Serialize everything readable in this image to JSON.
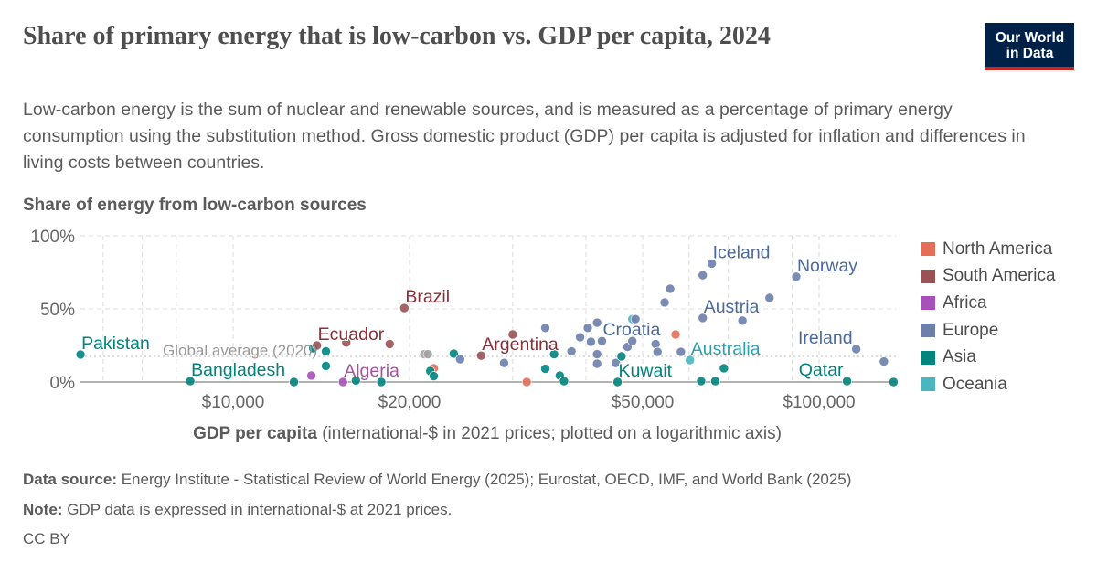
{
  "title": "Share of primary energy that is low-carbon vs. GDP per capita, 2024",
  "subtitle": "Low-carbon energy is the sum of nuclear and renewable sources, and is measured as a percentage of primary energy consumption using the substitution method. Gross domestic product (GDP) per capita is adjusted for inflation and differences in living costs between countries.",
  "logo": {
    "line1": "Our World",
    "line2": "in Data",
    "bg": "#002147",
    "accent": "#ce261e"
  },
  "footer": {
    "source_label": "Data source:",
    "source": "Energy Institute - Statistical Review of World Energy (2025); Eurostat, OECD, IMF, and World Bank (2025)",
    "note_label": "Note:",
    "note": "GDP data is expressed in international-$ at 2021 prices.",
    "license": "CC BY"
  },
  "chart_data": {
    "type": "scatter",
    "ylabel": "Share of energy from low-carbon sources",
    "xlabel_bold": "GDP per capita",
    "xlabel_rest": "(international-$ in 2021 prices; plotted on a logarithmic axis)",
    "x_scale": "log",
    "xlim": [
      5500,
      140000
    ],
    "ylim": [
      0,
      100
    ],
    "x_ticks": [
      {
        "v": 10000,
        "label": "$10,000"
      },
      {
        "v": 20000,
        "label": "$20,000"
      },
      {
        "v": 50000,
        "label": "$50,000"
      },
      {
        "v": 100000,
        "label": "$100,000"
      }
    ],
    "x_grid": [
      6000,
      7000,
      8000,
      10000,
      20000,
      30000,
      40000,
      50000,
      60000,
      70000,
      90000,
      100000
    ],
    "y_ticks": [
      {
        "v": 0,
        "label": "0%"
      },
      {
        "v": 50,
        "label": "50%"
      },
      {
        "v": 100,
        "label": "100%"
      }
    ],
    "grid": true,
    "reference_line": {
      "y": 17.5,
      "label": "Global average (2020)",
      "label_x": 46500
    },
    "legend_position": "right",
    "groups": [
      {
        "name": "North America",
        "color": "#e56e5a",
        "text": "#c4523e"
      },
      {
        "name": "South America",
        "color": "#9a5256",
        "text": "#883039"
      },
      {
        "name": "Africa",
        "color": "#a652ba",
        "text": "#a2559c"
      },
      {
        "name": "Europe",
        "color": "#6d80ac",
        "text": "#4c6a9c"
      },
      {
        "name": "Asia",
        "color": "#00847e",
        "text": "#00847e"
      },
      {
        "name": "Oceania",
        "color": "#4cb5c0",
        "text": "#2ca0ad"
      },
      {
        "name": "",
        "color": "#a0a0a0",
        "text": "#a0a0a0"
      }
    ],
    "points": [
      {
        "g": "Asia",
        "x": 5490,
        "y": 18.8,
        "name": "Pakistan"
      },
      {
        "g": "Asia",
        "x": 8450,
        "y": 0.6,
        "name": "Bangladesh"
      },
      {
        "g": "Asia",
        "x": 12700,
        "y": 0
      },
      {
        "g": "Africa",
        "x": 13600,
        "y": 4.4
      },
      {
        "g": "Asia",
        "x": 13700,
        "y": 23
      },
      {
        "g": "South America",
        "x": 13900,
        "y": 25,
        "name": "Ecuador"
      },
      {
        "g": "Asia",
        "x": 14400,
        "y": 21
      },
      {
        "g": "Asia",
        "x": 14400,
        "y": 11
      },
      {
        "g": "Africa",
        "x": 15400,
        "y": 0,
        "name": "Algeria"
      },
      {
        "g": "South America",
        "x": 15600,
        "y": 27
      },
      {
        "g": "Asia",
        "x": 16200,
        "y": 1
      },
      {
        "g": "Asia",
        "x": 17900,
        "y": 0
      },
      {
        "g": "South America",
        "x": 18500,
        "y": 26
      },
      {
        "g": "South America",
        "x": 19600,
        "y": 50.6,
        "name": "Brazil"
      },
      {
        "g": "",
        "x": 21200,
        "y": 19
      },
      {
        "g": "",
        "x": 21500,
        "y": 19
      },
      {
        "g": "North America",
        "x": 22000,
        "y": 9.4
      },
      {
        "g": "Asia",
        "x": 21700,
        "y": 7.5
      },
      {
        "g": "Asia",
        "x": 22000,
        "y": 4
      },
      {
        "g": "Asia",
        "x": 23800,
        "y": 19.4
      },
      {
        "g": "Europe",
        "x": 24400,
        "y": 15.6
      },
      {
        "g": "South America",
        "x": 26500,
        "y": 18,
        "name": "Argentina"
      },
      {
        "g": "Europe",
        "x": 29000,
        "y": 13
      },
      {
        "g": "South America",
        "x": 30000,
        "y": 32.5
      },
      {
        "g": "North America",
        "x": 31700,
        "y": 0
      },
      {
        "g": "Europe",
        "x": 34100,
        "y": 37
      },
      {
        "g": "Asia",
        "x": 34100,
        "y": 9
      },
      {
        "g": "Asia",
        "x": 35300,
        "y": 19
      },
      {
        "g": "Asia",
        "x": 36100,
        "y": 4.4
      },
      {
        "g": "Asia",
        "x": 36700,
        "y": 0.6
      },
      {
        "g": "Europe",
        "x": 37800,
        "y": 21
      },
      {
        "g": "Europe",
        "x": 39100,
        "y": 30.6
      },
      {
        "g": "Europe",
        "x": 40300,
        "y": 37
      },
      {
        "g": "Europe",
        "x": 40800,
        "y": 27.5
      },
      {
        "g": "Europe",
        "x": 41800,
        "y": 40.6
      },
      {
        "g": "Europe",
        "x": 42600,
        "y": 28,
        "name": "Croatia"
      },
      {
        "g": "Europe",
        "x": 41800,
        "y": 19
      },
      {
        "g": "Europe",
        "x": 41800,
        "y": 12.5
      },
      {
        "g": "Europe",
        "x": 45000,
        "y": 13
      },
      {
        "g": "Asia",
        "x": 45300,
        "y": 0,
        "name": "Kuwait"
      },
      {
        "g": "Asia",
        "x": 46000,
        "y": 17.5
      },
      {
        "g": "Europe",
        "x": 47100,
        "y": 24
      },
      {
        "g": "Europe",
        "x": 48000,
        "y": 28
      },
      {
        "g": "Oceania",
        "x": 48000,
        "y": 43
      },
      {
        "g": "Europe",
        "x": 48600,
        "y": 43
      },
      {
        "g": "Europe",
        "x": 52600,
        "y": 26
      },
      {
        "g": "Europe",
        "x": 53000,
        "y": 20.6
      },
      {
        "g": "Europe",
        "x": 54500,
        "y": 54.4
      },
      {
        "g": "Europe",
        "x": 55700,
        "y": 63.8
      },
      {
        "g": "North America",
        "x": 56900,
        "y": 32.5
      },
      {
        "g": "Europe",
        "x": 58100,
        "y": 20.6
      },
      {
        "g": "Oceania",
        "x": 60200,
        "y": 15,
        "name": "Australia"
      },
      {
        "g": "Asia",
        "x": 62900,
        "y": 0.6
      },
      {
        "g": "Europe",
        "x": 63300,
        "y": 73
      },
      {
        "g": "Europe",
        "x": 63300,
        "y": 43.8,
        "name": "Austria"
      },
      {
        "g": "Europe",
        "x": 65600,
        "y": 81,
        "name": "Iceland"
      },
      {
        "g": "Asia",
        "x": 66500,
        "y": 0.6
      },
      {
        "g": "Asia",
        "x": 68800,
        "y": 9.4
      },
      {
        "g": "Europe",
        "x": 74000,
        "y": 42
      },
      {
        "g": "Europe",
        "x": 82300,
        "y": 57.5
      },
      {
        "g": "Europe",
        "x": 91400,
        "y": 72,
        "name": "Norway"
      },
      {
        "g": "Asia",
        "x": 111600,
        "y": 0.6,
        "name": "Qatar"
      },
      {
        "g": "Europe",
        "x": 115700,
        "y": 22.5,
        "name": "Ireland"
      },
      {
        "g": "Europe",
        "x": 129000,
        "y": 14
      },
      {
        "g": "Asia",
        "x": 134000,
        "y": 0
      }
    ]
  }
}
